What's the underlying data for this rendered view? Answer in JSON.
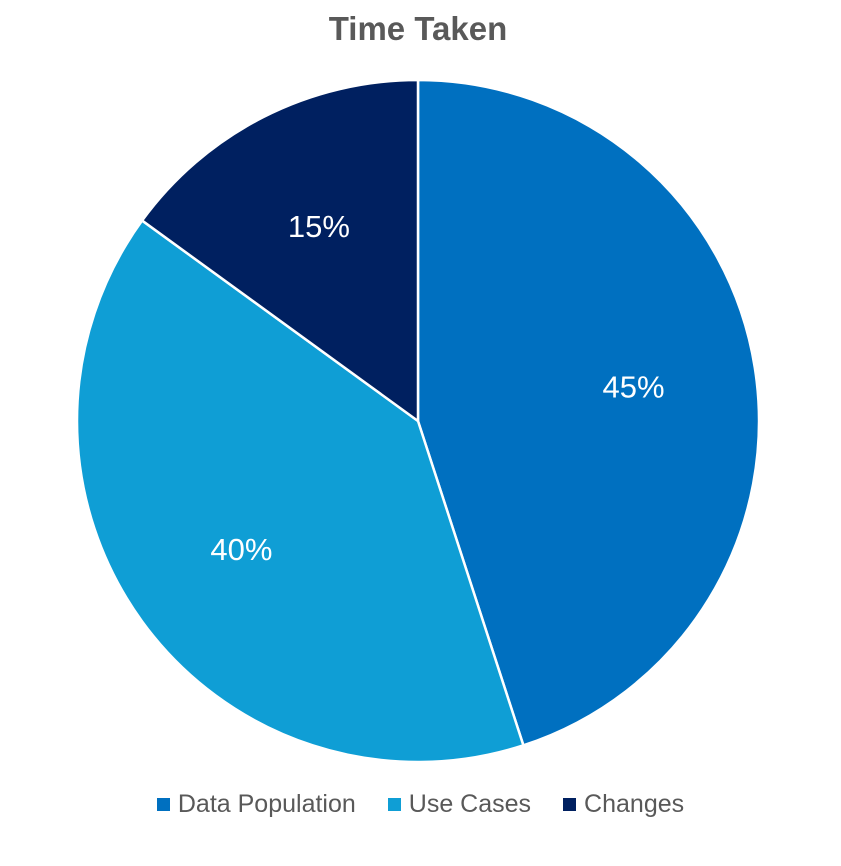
{
  "chart_data": {
    "type": "pie",
    "title": "Time Taken",
    "slices": [
      {
        "name": "Data Population",
        "value": 45,
        "label": "45%",
        "color": "#0070C0"
      },
      {
        "name": "Use Cases",
        "value": 40,
        "label": "40%",
        "color": "#0F9ED5"
      },
      {
        "name": "Changes",
        "value": 15,
        "label": "15%",
        "color": "#002060"
      }
    ],
    "start_angle": "12 o'clock, clockwise",
    "legend_position": "bottom",
    "label_color": "#FFFFFF"
  }
}
